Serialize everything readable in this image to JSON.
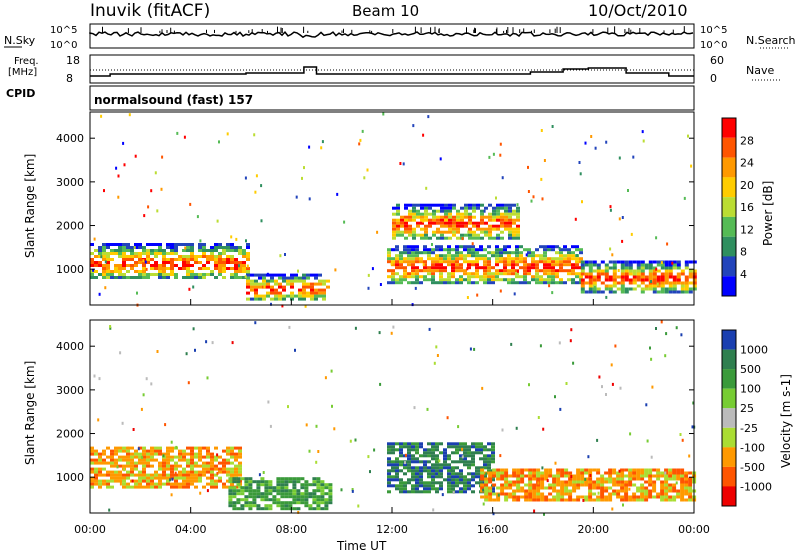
{
  "header": {
    "site": "Inuvik (fitACF)",
    "beam": "Beam 10",
    "date": "10/Oct/2010"
  },
  "panels": {
    "noise": {
      "left_label": "N.Sky",
      "right_label": "N.Search",
      "left_ticks": [
        "10^5",
        "10^0"
      ],
      "right_ticks": [
        "10^5",
        "10^0"
      ]
    },
    "freq": {
      "left_label_1": "Freq.",
      "left_label_2": "[MHz]",
      "right_label": "Nave",
      "left_ticks": [
        "18",
        "8"
      ],
      "right_ticks": [
        "60",
        "0"
      ]
    },
    "cpid": {
      "label": "CPID",
      "value": "normalsound (fast) 157"
    }
  },
  "colors": {
    "power": [
      "#0000ff",
      "#2244bb",
      "#2f8f5f",
      "#55bb55",
      "#bbdd33",
      "#ffcc00",
      "#ff9900",
      "#ff5500",
      "#ff0000"
    ],
    "velocity": [
      "#1a3fb0",
      "#2f7f4f",
      "#3a9a3a",
      "#77cc33",
      "#bbbbbb",
      "#aadd33",
      "#ff9900",
      "#ff5500",
      "#ee0000"
    ]
  },
  "chart_data": [
    {
      "type": "heatmap",
      "title": "Power",
      "ylabel": "Slant Range [km]",
      "xlabel": "",
      "y_ticks": [
        1000,
        2000,
        3000,
        4000
      ],
      "ylim": [
        180,
        4600
      ],
      "x_ticks": [
        "00:00",
        "04:00",
        "08:00",
        "12:00",
        "16:00",
        "20:00",
        "00:00"
      ],
      "colorbar_label": "Power [dB]",
      "colorbar_ticks": [
        "4",
        "8",
        "12",
        "16",
        "20",
        "24",
        "28"
      ],
      "bands": [
        {
          "x": [
            0.0,
            6.2
          ],
          "y": [
            800,
            1600
          ],
          "level": "high"
        },
        {
          "x": [
            6.2,
            9.5
          ],
          "y": [
            300,
            900
          ],
          "level": "high"
        },
        {
          "x": [
            11.8,
            19.5
          ],
          "y": [
            700,
            1550
          ],
          "level": "high"
        },
        {
          "x": [
            19.5,
            24.0
          ],
          "y": [
            500,
            1200
          ],
          "level": "high"
        },
        {
          "x": [
            12.0,
            17.0
          ],
          "y": [
            1700,
            2500
          ],
          "level": "medium"
        }
      ]
    },
    {
      "type": "heatmap",
      "title": "Velocity",
      "ylabel": "Slant Range [km]",
      "xlabel": "Time UT",
      "y_ticks": [
        1000,
        2000,
        3000,
        4000
      ],
      "ylim": [
        180,
        4600
      ],
      "x_ticks": [
        "00:00",
        "04:00",
        "08:00",
        "12:00",
        "16:00",
        "20:00",
        "00:00"
      ],
      "colorbar_label": "Velocity [m s-1]",
      "colorbar_ticks": [
        "1000",
        "500",
        "100",
        "25",
        "-25",
        "-100",
        "-500",
        "-1000"
      ],
      "bands": [
        {
          "x": [
            0.0,
            6.0
          ],
          "y": [
            800,
            1700
          ],
          "value": "-100"
        },
        {
          "x": [
            5.5,
            9.5
          ],
          "y": [
            300,
            1000
          ],
          "value": "100"
        },
        {
          "x": [
            11.8,
            16.0
          ],
          "y": [
            700,
            1800
          ],
          "value": "500"
        },
        {
          "x": [
            15.5,
            24.0
          ],
          "y": [
            500,
            1200
          ],
          "value": "-100"
        }
      ]
    }
  ]
}
